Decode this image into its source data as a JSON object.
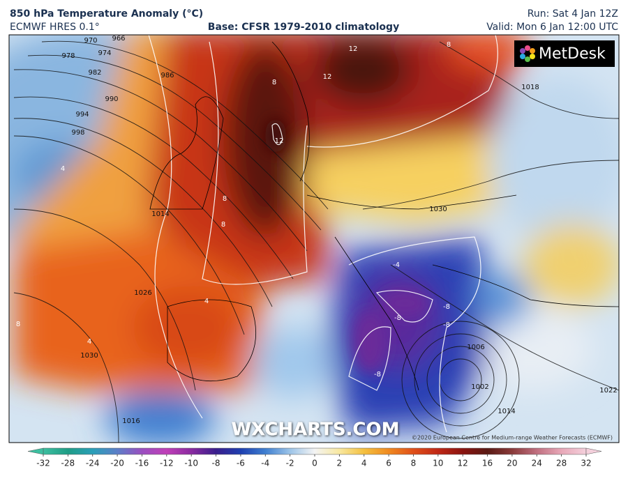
{
  "header": {
    "title": "850 hPa Temperature Anomaly (°C)",
    "model": "ECMWF HRES 0.1°",
    "base": "Base: CFSR 1979-2010 climatology",
    "run": "Run: Sat 4 Jan 12Z",
    "valid": "Valid: Mon 6 Jan 12:00 UTC"
  },
  "logo": "MetDesk",
  "watermark": "WXCHARTS.COM",
  "copyright": "©2020 European Centre for Medium-range Weather Forecasts (ECMWF)",
  "isobar_labels": [
    970,
    966,
    974,
    978,
    982,
    986,
    990,
    994,
    998,
    1014,
    1018,
    1026,
    1030,
    1030,
    1006,
    1002,
    1014,
    1016,
    1022
  ],
  "anomaly_labels": [
    12,
    12,
    12,
    8,
    8,
    8,
    8,
    8,
    4,
    4,
    4,
    -4,
    -8,
    -8,
    -8,
    -8
  ],
  "colorbar": {
    "ticks": [
      -32,
      -28,
      -24,
      -20,
      -16,
      -12,
      -10,
      -8,
      -6,
      -4,
      -2,
      0,
      2,
      4,
      6,
      8,
      10,
      12,
      16,
      20,
      24,
      28,
      32
    ],
    "colors": [
      "#3dbfa0",
      "#1f9d86",
      "#2a9fb8",
      "#5c7fc8",
      "#9a4fc0",
      "#c040b8",
      "#8a2aa0",
      "#3a1e8c",
      "#1e3fb0",
      "#3f7fd0",
      "#9cc4e8",
      "#f4f4f4",
      "#f8e8a0",
      "#f4c040",
      "#f08a20",
      "#e0501a",
      "#c02816",
      "#8a1410",
      "#5a1a14",
      "#8a3a3a",
      "#c07080",
      "#e8a8b8",
      "#f4d0dc"
    ]
  }
}
